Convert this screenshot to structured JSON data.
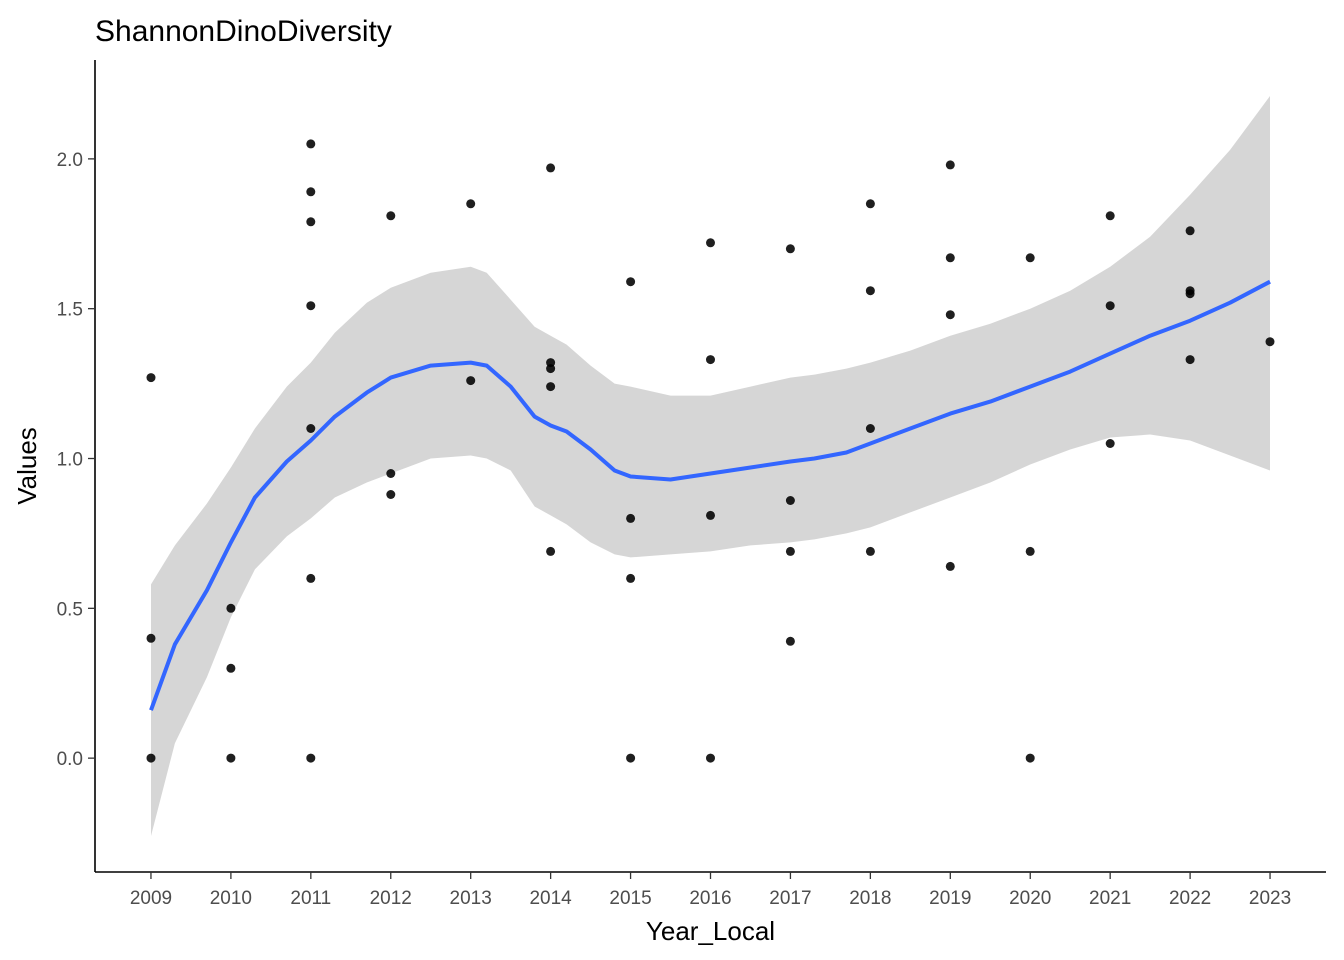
{
  "chart_data": {
    "type": "scatter",
    "title": "ShannonDinoDiversity",
    "xlabel": "Year_Local",
    "ylabel": "Values",
    "xlim": [
      2008.3,
      2023.7
    ],
    "ylim": [
      -0.38,
      2.33
    ],
    "x_ticks": [
      2009,
      2010,
      2011,
      2012,
      2013,
      2014,
      2015,
      2016,
      2017,
      2018,
      2019,
      2020,
      2021,
      2022,
      2023
    ],
    "x_tick_labels": [
      "2009",
      "2010",
      "2011",
      "2012",
      "2013",
      "2014",
      "2015",
      "2016",
      "2017",
      "2018",
      "2019",
      "2020",
      "2021",
      "2022",
      "2023"
    ],
    "y_ticks": [
      0.0,
      0.5,
      1.0,
      1.5,
      2.0
    ],
    "y_tick_labels": [
      "0.0",
      "0.5",
      "1.0",
      "1.5",
      "2.0"
    ],
    "grid": false,
    "legend": "none",
    "point_color": "#000000",
    "smooth_color": "#3366FF",
    "ribbon_color": "#d6d6d6",
    "points": [
      {
        "x": 2009,
        "y": 1.27
      },
      {
        "x": 2009,
        "y": 0.4
      },
      {
        "x": 2009,
        "y": 0.0
      },
      {
        "x": 2010,
        "y": 0.5
      },
      {
        "x": 2010,
        "y": 0.3
      },
      {
        "x": 2010,
        "y": 0.0
      },
      {
        "x": 2011,
        "y": 2.05
      },
      {
        "x": 2011,
        "y": 1.89
      },
      {
        "x": 2011,
        "y": 1.79
      },
      {
        "x": 2011,
        "y": 1.51
      },
      {
        "x": 2011,
        "y": 1.1
      },
      {
        "x": 2011,
        "y": 0.6
      },
      {
        "x": 2011,
        "y": 0.0
      },
      {
        "x": 2012,
        "y": 1.81
      },
      {
        "x": 2012,
        "y": 0.95
      },
      {
        "x": 2012,
        "y": 0.88
      },
      {
        "x": 2013,
        "y": 1.85
      },
      {
        "x": 2013,
        "y": 1.26
      },
      {
        "x": 2014,
        "y": 1.97
      },
      {
        "x": 2014,
        "y": 1.32
      },
      {
        "x": 2014,
        "y": 1.3
      },
      {
        "x": 2014,
        "y": 1.24
      },
      {
        "x": 2014,
        "y": 0.69
      },
      {
        "x": 2015,
        "y": 1.59
      },
      {
        "x": 2015,
        "y": 0.8
      },
      {
        "x": 2015,
        "y": 0.6
      },
      {
        "x": 2015,
        "y": 0.0
      },
      {
        "x": 2016,
        "y": 1.72
      },
      {
        "x": 2016,
        "y": 1.33
      },
      {
        "x": 2016,
        "y": 0.81
      },
      {
        "x": 2016,
        "y": 0.0
      },
      {
        "x": 2017,
        "y": 1.7
      },
      {
        "x": 2017,
        "y": 0.86
      },
      {
        "x": 2017,
        "y": 0.69
      },
      {
        "x": 2017,
        "y": 0.39
      },
      {
        "x": 2018,
        "y": 1.85
      },
      {
        "x": 2018,
        "y": 1.56
      },
      {
        "x": 2018,
        "y": 1.1
      },
      {
        "x": 2018,
        "y": 0.69
      },
      {
        "x": 2019,
        "y": 1.98
      },
      {
        "x": 2019,
        "y": 1.67
      },
      {
        "x": 2019,
        "y": 1.48
      },
      {
        "x": 2019,
        "y": 0.64
      },
      {
        "x": 2020,
        "y": 1.67
      },
      {
        "x": 2020,
        "y": 0.69
      },
      {
        "x": 2020,
        "y": 0.0
      },
      {
        "x": 2021,
        "y": 1.81
      },
      {
        "x": 2021,
        "y": 1.51
      },
      {
        "x": 2021,
        "y": 1.05
      },
      {
        "x": 2022,
        "y": 1.76
      },
      {
        "x": 2022,
        "y": 1.56
      },
      {
        "x": 2022,
        "y": 1.55
      },
      {
        "x": 2022,
        "y": 1.33
      },
      {
        "x": 2023,
        "y": 1.39
      }
    ],
    "smooth": {
      "x": [
        2009,
        2009.3,
        2009.7,
        2010,
        2010.3,
        2010.7,
        2011,
        2011.3,
        2011.7,
        2012,
        2012.5,
        2013,
        2013.2,
        2013.5,
        2013.8,
        2014,
        2014.2,
        2014.5,
        2014.8,
        2015,
        2015.5,
        2016,
        2016.5,
        2017,
        2017.3,
        2017.7,
        2018,
        2018.5,
        2019,
        2019.5,
        2020,
        2020.5,
        2021,
        2021.5,
        2022,
        2022.5,
        2023
      ],
      "y": [
        0.16,
        0.38,
        0.56,
        0.72,
        0.87,
        0.99,
        1.06,
        1.14,
        1.22,
        1.27,
        1.31,
        1.32,
        1.31,
        1.24,
        1.14,
        1.11,
        1.09,
        1.03,
        0.96,
        0.94,
        0.93,
        0.95,
        0.97,
        0.99,
        1.0,
        1.02,
        1.05,
        1.1,
        1.15,
        1.19,
        1.24,
        1.29,
        1.35,
        1.41,
        1.46,
        1.52,
        1.59
      ],
      "lower": [
        -0.26,
        0.05,
        0.27,
        0.47,
        0.63,
        0.74,
        0.8,
        0.87,
        0.92,
        0.95,
        1.0,
        1.01,
        1.0,
        0.96,
        0.84,
        0.81,
        0.78,
        0.72,
        0.68,
        0.67,
        0.68,
        0.69,
        0.71,
        0.72,
        0.73,
        0.75,
        0.77,
        0.82,
        0.87,
        0.92,
        0.98,
        1.03,
        1.07,
        1.08,
        1.06,
        1.01,
        0.96
      ],
      "upper": [
        0.58,
        0.71,
        0.85,
        0.97,
        1.1,
        1.24,
        1.32,
        1.42,
        1.52,
        1.57,
        1.62,
        1.64,
        1.62,
        1.53,
        1.44,
        1.41,
        1.38,
        1.31,
        1.25,
        1.24,
        1.21,
        1.21,
        1.24,
        1.27,
        1.28,
        1.3,
        1.32,
        1.36,
        1.41,
        1.45,
        1.5,
        1.56,
        1.64,
        1.74,
        1.88,
        2.03,
        2.21
      ]
    }
  }
}
